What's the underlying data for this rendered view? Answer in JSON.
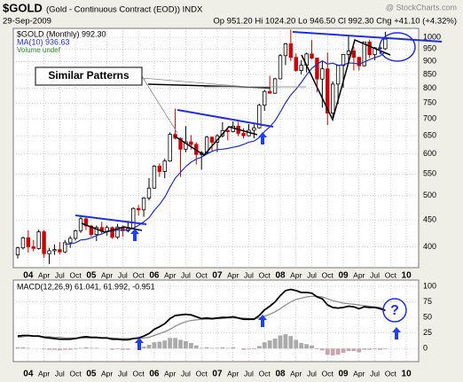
{
  "header": {
    "symbol": "$GOLD",
    "title": "(Gold - Continuous Contract (EOD)) INDX",
    "date": "29-Sep-2009",
    "quote": "Op 951.20 Hi 1024.20 Lo 946.50 Cl 992.30 Chg +41.10 (+4.32%)",
    "watermark": "@ StockCharts.com"
  },
  "chart_data": [
    {
      "type": "candlestick",
      "legend": [
        "$GOLD (Monthly) 992.30",
        "MA(10) 936.63",
        "Volume undef"
      ],
      "annotations": [
        "Similar Patterns"
      ],
      "categories": [
        null,
        null,
        "04",
        null,
        null,
        "Apr",
        null,
        null,
        "Jul",
        null,
        null,
        "Oct",
        null,
        null,
        "05",
        null,
        null,
        "Apr",
        null,
        null,
        "Jul",
        null,
        null,
        "Oct",
        null,
        null,
        "06",
        null,
        null,
        "Apr",
        null,
        null,
        "Jul",
        null,
        null,
        "Oct",
        null,
        null,
        "07",
        null,
        null,
        "Apr",
        null,
        null,
        "Jul",
        null,
        null,
        "Oct",
        null,
        null,
        "08",
        null,
        null,
        "Apr",
        null,
        null,
        "Jul",
        null,
        null,
        "Oct",
        null,
        null,
        "09",
        null,
        null,
        "Apr",
        null,
        null,
        "Jul",
        null,
        null,
        "Oct",
        null,
        null,
        "10"
      ],
      "open": [
        386,
        398,
        416,
        400,
        397,
        427,
        388,
        393,
        395,
        391,
        407,
        415,
        429,
        452,
        438,
        422,
        435,
        428,
        435,
        417,
        436,
        429,
        433,
        473,
        470,
        495,
        517,
        569,
        556,
        582,
        654,
        643,
        613,
        633,
        626,
        599,
        604,
        646,
        632,
        650,
        665,
        662,
        678,
        657,
        650,
        666,
        673,
        743,
        789,
        783,
        834,
        923,
        972,
        916,
        865,
        885,
        930,
        913,
        833,
        871,
        718,
        815,
        884,
        928,
        942,
        916,
        883,
        980,
        927,
        955,
        951.2,
        null,
        null,
        null,
        null
      ],
      "high": [
        400,
        418,
        430,
        412,
        431,
        430,
        398,
        404,
        408,
        412,
        419,
        431,
        456,
        456,
        440,
        439,
        446,
        439,
        437,
        442,
        439,
        448,
        475,
        480,
        497,
        540,
        572,
        576,
        588,
        660,
        732,
        645,
        678,
        652,
        632,
        608,
        650,
        648,
        655,
        690,
        673,
        692,
        691,
        672,
        684,
        683,
        748,
        795,
        845,
        838,
        930,
        976,
        1034,
        932,
        905,
        935,
        988,
        915,
        902,
        935,
        825,
        886,
        930,
        1007,
        960,
        919,
        981,
        990,
        959,
        966,
        1024.2,
        null,
        null,
        null,
        null
      ],
      "low": [
        380,
        395,
        390,
        392,
        395,
        381,
        371,
        386,
        387,
        389,
        398,
        411,
        425,
        430,
        418,
        410,
        424,
        420,
        414,
        414,
        418,
        426,
        432,
        458,
        456,
        490,
        515,
        543,
        540,
        580,
        640,
        543,
        605,
        612,
        573,
        560,
        600,
        606,
        605,
        645,
        637,
        660,
        649,
        642,
        648,
        643,
        671,
        725,
        782,
        781,
        832,
        886,
        902,
        860,
        851,
        858,
        909,
        786,
        735,
        681,
        705,
        747,
        802,
        893,
        865,
        865,
        880,
        913,
        905,
        930,
        946.5,
        null,
        null,
        null,
        null
      ],
      "close": [
        398,
        416,
        400,
        397,
        427,
        388,
        393,
        395,
        391,
        407,
        415,
        429,
        452,
        438,
        422,
        435,
        428,
        435,
        417,
        436,
        429,
        433,
        473,
        470,
        495,
        517,
        569,
        556,
        582,
        654,
        643,
        613,
        633,
        626,
        599,
        604,
        646,
        632,
        650,
        665,
        662,
        678,
        657,
        650,
        666,
        673,
        743,
        789,
        783,
        834,
        923,
        972,
        916,
        865,
        885,
        930,
        913,
        833,
        871,
        718,
        815,
        884,
        928,
        942,
        916,
        883,
        980,
        927,
        955,
        955,
        992.3,
        null,
        null,
        null,
        null
      ],
      "up_color": "#000000",
      "down_color": "#cc0000",
      "series": [
        {
          "name": "MA(10)",
          "color": "#1f2fbf",
          "values": [
            null,
            null,
            null,
            null,
            null,
            null,
            null,
            null,
            null,
            404,
            405,
            407,
            412,
            413,
            416,
            420,
            423,
            427,
            429,
            430,
            430,
            430,
            434,
            439,
            446,
            454,
            469,
            481,
            497,
            519,
            540,
            554,
            568,
            579,
            587,
            592,
            600,
            607,
            612,
            613,
            615,
            618,
            621,
            626,
            632,
            635,
            645,
            662,
            676,
            694,
            721,
            751,
            777,
            797,
            821,
            848,
            873,
            889,
            902,
            890,
            893,
            885,
            886,
            894,
            893,
            890,
            898,
            907,
            915,
            922,
            936.63,
            null,
            null,
            null,
            null
          ]
        }
      ],
      "log_scale": true,
      "grid": true,
      "ylim": [
        365,
        1040
      ],
      "yticks": [
        400,
        450,
        500,
        550,
        600,
        650,
        700,
        750,
        800,
        850,
        900,
        950,
        1000
      ]
    },
    {
      "type": "macd",
      "legend": [
        "MACD(12,26,9) 61.041, 61.992, -0.951"
      ],
      "annotations": [
        "?"
      ],
      "series": [
        {
          "name": "MACD",
          "color": "#000000",
          "values": [
            20,
            21,
            21,
            20,
            20,
            18,
            17,
            16,
            15,
            15,
            15,
            16,
            18,
            19,
            18,
            18,
            17,
            17,
            15,
            15,
            14,
            14,
            16,
            17,
            20,
            24,
            31,
            35,
            40,
            48,
            53,
            54,
            55,
            54,
            51,
            48,
            49,
            48,
            49,
            50,
            50,
            51,
            49,
            47,
            47,
            47,
            53,
            62,
            68,
            75,
            85,
            93,
            95,
            93,
            90,
            90,
            89,
            83,
            80,
            70,
            66,
            65,
            66,
            68,
            67,
            64,
            67,
            66,
            66,
            64,
            61.041,
            null,
            null,
            null,
            null
          ]
        },
        {
          "name": "Signal",
          "color": "#888888",
          "values": [
            18,
            19,
            20,
            20,
            20,
            19,
            19,
            18,
            18,
            17,
            17,
            17,
            17,
            17,
            17,
            17,
            17,
            17,
            17,
            16,
            16,
            16,
            16,
            16,
            17,
            18,
            21,
            24,
            27,
            31,
            36,
            40,
            43,
            45,
            46,
            47,
            47,
            47,
            48,
            48,
            49,
            49,
            49,
            49,
            48,
            48,
            49,
            52,
            55,
            59,
            64,
            70,
            75,
            79,
            81,
            83,
            84,
            84,
            83,
            80,
            77,
            75,
            73,
            72,
            71,
            70,
            69,
            68,
            67,
            66,
            61.992,
            null,
            null,
            null,
            null
          ]
        },
        {
          "name": "Histogram",
          "color": "#aaaaaa",
          "negative_color": "#c9a3ad",
          "values": [
            2,
            2,
            1,
            0,
            0,
            -1,
            -2,
            -2,
            -3,
            -2,
            -2,
            -1,
            1,
            2,
            1,
            1,
            0,
            0,
            -2,
            -1,
            -2,
            -2,
            0,
            1,
            3,
            6,
            10,
            11,
            13,
            17,
            17,
            14,
            12,
            9,
            5,
            1,
            2,
            1,
            1,
            2,
            1,
            2,
            0,
            -2,
            -1,
            -1,
            4,
            10,
            13,
            16,
            21,
            23,
            20,
            14,
            9,
            7,
            5,
            -1,
            -3,
            -10,
            -11,
            -10,
            -7,
            -4,
            -4,
            -6,
            -2,
            -2,
            -1,
            -2,
            -0.951,
            null,
            null,
            null,
            null
          ]
        }
      ],
      "grid": true,
      "ylim": [
        -21,
        110
      ],
      "yticks": [
        0,
        25,
        50,
        75,
        100
      ]
    }
  ]
}
